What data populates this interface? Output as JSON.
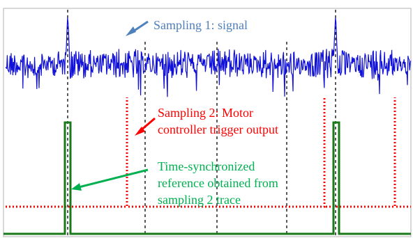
{
  "annotations": {
    "signal_label": "Sampling 1: signal",
    "trigger_label_line1": "Sampling 2: Motor",
    "trigger_label_line2": "controller trigger output",
    "reference_label_line1": "Time-synchronized",
    "reference_label_line2": "reference obtained from",
    "reference_label_line3": "sampling 2 trace"
  },
  "colors": {
    "signal": "#1010d8",
    "signal_label": "#4f81bd",
    "trigger": "#ff0000",
    "reference": "#1a7a1a",
    "reference_label": "#00b050",
    "grid": "#000000",
    "frame": "#b0b0b0"
  }
}
